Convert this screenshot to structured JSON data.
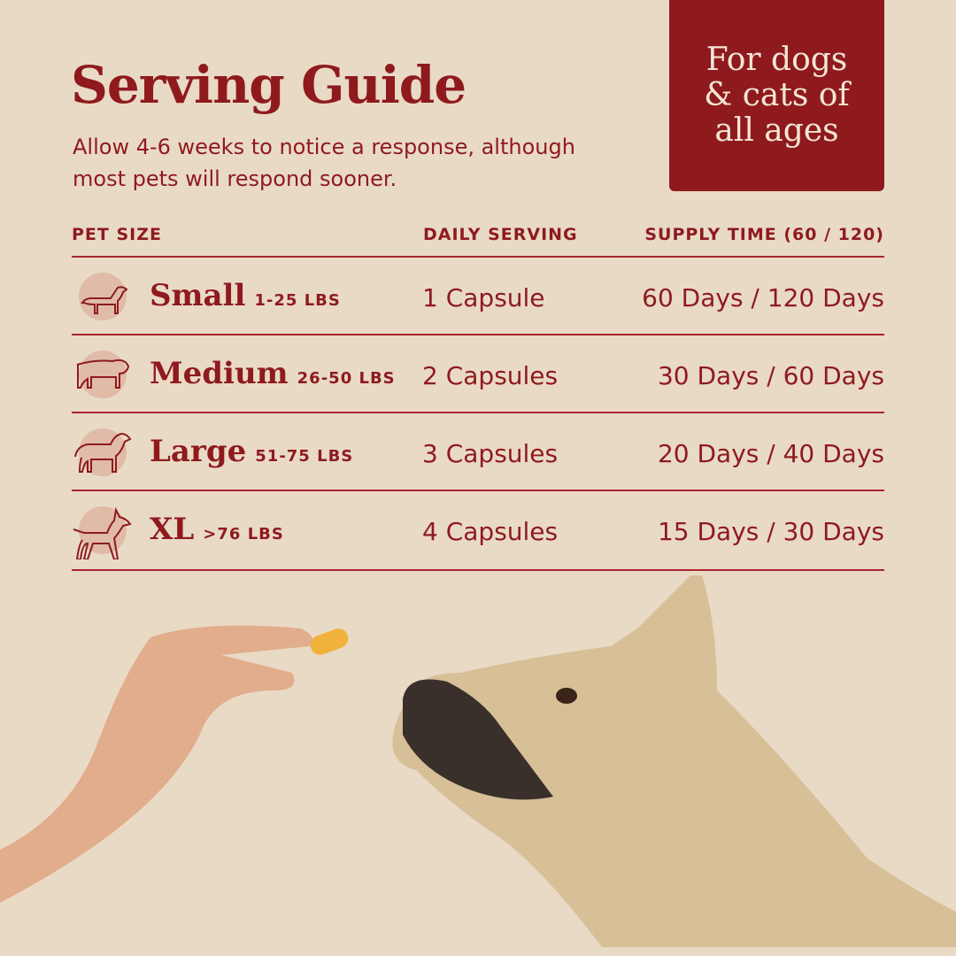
{
  "header": {
    "title": "Serving Guide",
    "subtitle": "Allow 4-6 weeks to notice a response, although most pets will respond sooner.",
    "badge": "For dogs & cats of all ages"
  },
  "table": {
    "columns": [
      "PET SIZE",
      "DAILY SERVING",
      "SUPPLY TIME (60 / 120)"
    ],
    "rows": [
      {
        "icon": "dachshund-icon",
        "size": "Small",
        "weight": "1-25 LBS",
        "serving": "1 Capsule",
        "supply": "60 Days / 120 Days"
      },
      {
        "icon": "bulldog-icon",
        "size": "Medium",
        "weight": "26-50 LBS",
        "serving": "2 Capsules",
        "supply": "30 Days / 60 Days"
      },
      {
        "icon": "retriever-icon",
        "size": "Large",
        "weight": "51-75 LBS",
        "serving": "3 Capsules",
        "supply": "20 Days / 40 Days"
      },
      {
        "icon": "doberman-icon",
        "size": "XL",
        "weight": ">76 LBS",
        "serving": "4 Capsules",
        "supply": "15 Days / 30 Days"
      }
    ]
  },
  "colors": {
    "background": "#e9dac6",
    "brand_red": "#8f1a1e",
    "icon_circle": "#dfbba8"
  }
}
